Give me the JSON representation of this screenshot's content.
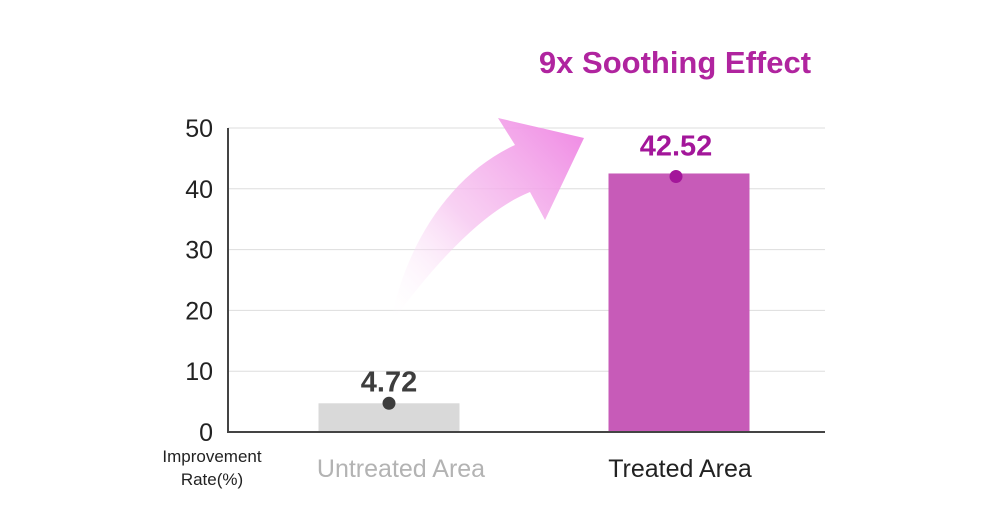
{
  "chart_data": {
    "type": "bar",
    "annotation": "9x Soothing Effect",
    "ylabel_line1": "Improvement",
    "ylabel_line2": "Rate(%)",
    "ylim": [
      0,
      50
    ],
    "yticks": [
      0,
      10,
      20,
      30,
      40,
      50
    ],
    "grid": true,
    "categories": [
      "Untreated Area",
      "Treated Area"
    ],
    "values": [
      4.72,
      42.52
    ],
    "value_labels": [
      "4.72",
      "42.52"
    ],
    "colors": {
      "untreated_bar": "#d9d9d9",
      "treated_bar": "#c75bb8",
      "untreated_label": "#3d3d3d",
      "treated_label": "#a3169a",
      "untreated_category_text": "#b3b3b3",
      "treated_category_text": "#222222",
      "annotation": "#b0249f",
      "arrow_start": "#f6c2ef",
      "arrow_end": "#ef86e3",
      "axis": "#444444",
      "grid": "#dddddd"
    }
  }
}
